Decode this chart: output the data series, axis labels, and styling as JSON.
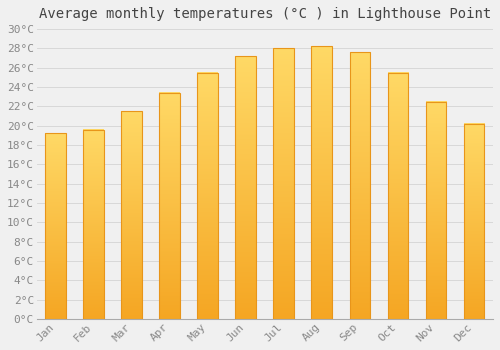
{
  "title": "Average monthly temperatures (°C ) in Lighthouse Point",
  "months": [
    "Jan",
    "Feb",
    "Mar",
    "Apr",
    "May",
    "Jun",
    "Jul",
    "Aug",
    "Sep",
    "Oct",
    "Nov",
    "Dec"
  ],
  "values": [
    19.2,
    19.6,
    21.5,
    23.4,
    25.5,
    27.2,
    28.0,
    28.2,
    27.6,
    25.5,
    22.5,
    20.2
  ],
  "bar_color_bottom": "#F5A623",
  "bar_color_top": "#FFD966",
  "bar_edge_color": "#E8951A",
  "background_color": "#f0f0f0",
  "grid_color": "#d8d8d8",
  "ylim": [
    0,
    30
  ],
  "yticks": [
    0,
    2,
    4,
    6,
    8,
    10,
    12,
    14,
    16,
    18,
    20,
    22,
    24,
    26,
    28,
    30
  ],
  "title_fontsize": 10,
  "tick_fontsize": 8,
  "font_color": "#888888",
  "bar_width": 0.55
}
